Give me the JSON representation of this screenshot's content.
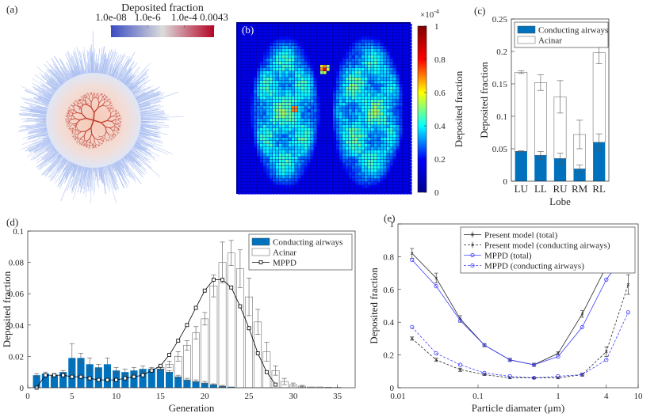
{
  "chart_data": [
    {
      "type": "colorbar",
      "label": "(a)",
      "title": "Deposited fraction",
      "orientation": "horizontal",
      "scale": "log",
      "lim": [
        1e-08,
        0.0043
      ],
      "ticks": [
        {
          "value": 1e-08,
          "label": "1.0e-08"
        },
        {
          "value": 1e-06,
          "label": "1.0e-6"
        },
        {
          "value": 0.0001,
          "label": "1.0e-4"
        },
        0.0043
      ],
      "colors": [
        "#3b4cc0",
        "#dcdcdc",
        "#b40426"
      ]
    },
    {
      "type": "colorbar",
      "label": "(b)",
      "ylabel": "Deposited fraction",
      "orientation": "vertical",
      "scale": "linear",
      "lim": [
        0,
        1
      ],
      "ticks": [
        0,
        0.2,
        0.4,
        0.6,
        0.8,
        1
      ],
      "scale_base": "×10",
      "scale_exponent": "-4",
      "colors": [
        "#00008f",
        "#0000ff",
        "#00ffff",
        "#ffff00",
        "#ff0000",
        "#800000"
      ]
    },
    {
      "type": "bar",
      "label": "(c)",
      "xlabel": "Lobe",
      "ylabel": "Deposited fraction",
      "stacked": true,
      "legend": "northwest",
      "categories": [
        "LU",
        "LL",
        "RU",
        "RM",
        "RL"
      ],
      "series": [
        {
          "name": "Conducting airways",
          "color": "#0072bd",
          "values": [
            0.046,
            0.04,
            0.035,
            0.019,
            0.06
          ],
          "errors": [
            0.001,
            0.006,
            0.008,
            0.006,
            0.013
          ]
        },
        {
          "name": "Acinar",
          "color": "#ffffff",
          "values": [
            0.122,
            0.112,
            0.095,
            0.053,
            0.138
          ],
          "errors": [
            0.002,
            0.012,
            0.025,
            0.022,
            0.017
          ]
        }
      ],
      "ylim": [
        0,
        0.25
      ],
      "yticks": [
        0,
        0.05,
        0.1,
        0.15,
        0.2,
        0.25
      ]
    },
    {
      "type": "bar",
      "label": "(d)",
      "xlabel": "Generation",
      "ylabel": "Deposited fraction",
      "stacked": true,
      "legend": "northeast",
      "x": [
        1,
        2,
        3,
        4,
        5,
        6,
        7,
        8,
        9,
        10,
        11,
        12,
        13,
        14,
        15,
        16,
        17,
        18,
        19,
        20,
        21,
        22,
        23,
        24,
        25,
        26,
        27,
        28,
        29,
        30,
        31,
        32,
        33,
        34,
        35
      ],
      "series": [
        {
          "name": "Conducting airways",
          "color": "#0072bd",
          "values": [
            0.008,
            0.009,
            0.008,
            0.01,
            0.019,
            0.019,
            0.015,
            0.013,
            0.015,
            0.011,
            0.01,
            0.011,
            0.012,
            0.012,
            0.012,
            0.01,
            0.007,
            0.005,
            0.004,
            0.003,
            0.002,
            0.001,
            0.0005,
            0,
            0,
            0,
            0,
            0,
            0,
            0,
            0,
            0,
            0,
            0,
            0
          ],
          "errors": [
            0.001,
            0.001,
            0.001,
            0.001,
            0.009,
            0.003,
            0.004,
            0.002,
            0.004,
            0.002,
            0.002,
            0.002,
            0.002,
            0.001,
            0.001,
            0.001,
            0.001,
            0.001,
            0.001,
            0.001,
            0.0005,
            0.0005,
            null,
            null,
            null,
            null,
            null,
            null,
            null,
            null,
            null,
            null,
            null,
            null,
            null
          ]
        },
        {
          "name": "Acinar",
          "color": "#ffffff",
          "values": [
            0,
            0,
            0,
            0,
            0,
            0,
            0,
            0,
            0,
            0,
            0,
            0,
            0,
            0,
            0.001,
            0.005,
            0.013,
            0.022,
            0.031,
            0.041,
            0.063,
            0.079,
            0.0855,
            0.076,
            0.058,
            0.042,
            0.023,
            0.011,
            0.004,
            0.002,
            0.001,
            0.0005,
            0.0005,
            0.0003,
            0.0002
          ],
          "errors": [
            null,
            null,
            null,
            null,
            null,
            null,
            null,
            null,
            null,
            null,
            null,
            null,
            null,
            null,
            0.001,
            0.002,
            0.003,
            0.003,
            0.004,
            0.004,
            0.007,
            0.013,
            0.008,
            0.012,
            0.012,
            0.008,
            0.006,
            0.003,
            0.002,
            0.001,
            0.0005,
            null,
            null,
            null,
            null
          ]
        },
        {
          "name": "MPPD",
          "kind": "line",
          "marker": "square",
          "color": "#000000",
          "x": [
            1,
            2,
            3,
            4,
            5,
            6,
            7,
            8,
            9,
            10,
            11,
            12,
            13,
            14,
            15,
            16,
            17,
            18,
            19,
            20,
            21,
            22,
            23,
            24,
            25,
            26,
            27,
            28
          ],
          "values": [
            0.0,
            0.008,
            0.008,
            0.008,
            0.007,
            0.007,
            0.006,
            0.005,
            0.005,
            0.005,
            0.006,
            0.007,
            0.008,
            0.011,
            0.014,
            0.021,
            0.03,
            0.04,
            0.051,
            0.062,
            0.069,
            0.069,
            0.064,
            0.052,
            0.038,
            0.022,
            0.01,
            0.002
          ]
        }
      ],
      "xlim": [
        0,
        37
      ],
      "xticks": [
        0,
        5,
        10,
        15,
        20,
        25,
        30,
        35
      ],
      "ylim": [
        0,
        0.1
      ],
      "yticks": [
        0,
        0.02,
        0.04,
        0.06,
        0.08,
        0.1
      ]
    },
    {
      "type": "line",
      "label": "(e)",
      "xlabel": "Particle diamater (μm)",
      "ylabel": "Deposited fraction",
      "xscale": "log",
      "legend": "northeast",
      "x": [
        0.015,
        0.03,
        0.06,
        0.12,
        0.25,
        0.5,
        1,
        2,
        4,
        7.5
      ],
      "series": [
        {
          "name": "Present model (total)",
          "color": "#262626",
          "dash": false,
          "marker": "cross",
          "values": [
            0.82,
            0.67,
            0.42,
            0.26,
            0.17,
            0.14,
            0.21,
            0.45,
            0.74,
            0.88
          ],
          "errors": [
            0.03,
            0.03,
            0.02,
            0.01,
            0.01,
            0.01,
            0.01,
            0.02,
            0.03,
            0.03
          ]
        },
        {
          "name": "Present model (conducting airways)",
          "color": "#262626",
          "dash": true,
          "marker": "cross",
          "values": [
            0.3,
            0.17,
            0.11,
            0.08,
            0.06,
            0.06,
            0.06,
            0.08,
            0.22,
            0.63
          ],
          "errors": [
            0.01,
            0.01,
            0.01,
            0.005,
            0.005,
            0.005,
            0.005,
            0.01,
            0.03,
            0.06
          ]
        },
        {
          "name": "MPPD (total)",
          "color": "#3f3fff",
          "dash": false,
          "marker": "circle",
          "values": [
            0.78,
            0.62,
            0.41,
            0.26,
            0.17,
            0.14,
            0.19,
            0.37,
            0.66,
            0.84
          ]
        },
        {
          "name": "MPPD (conducting airways)",
          "color": "#3f3fff",
          "dash": true,
          "marker": "circle",
          "values": [
            0.37,
            0.21,
            0.14,
            0.09,
            0.07,
            0.06,
            0.07,
            0.08,
            0.17,
            0.46
          ]
        }
      ],
      "xlim": [
        0.01,
        10
      ],
      "xticks": [
        0.01,
        0.1,
        1,
        4,
        10
      ],
      "ylim": [
        0,
        1
      ],
      "yticks": [
        0,
        0.2,
        0.4,
        0.6,
        0.8,
        1
      ]
    }
  ]
}
